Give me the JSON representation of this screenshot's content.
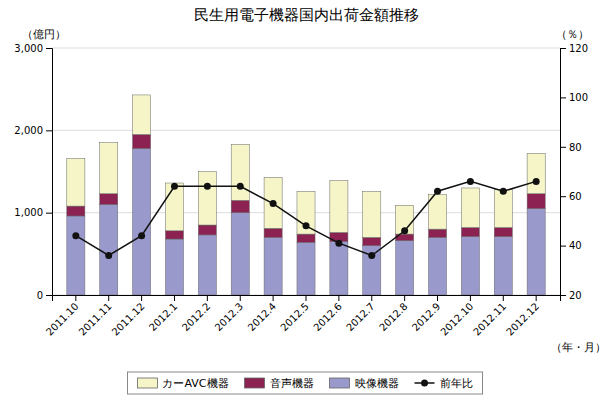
{
  "chart_data": {
    "type": "bar",
    "title": "民生用電子機器国内出荷金額推移",
    "xlabel": "（年・月）",
    "ylabel": "（億円）",
    "y2label": "（％）",
    "categories": [
      "2011.10",
      "2011.11",
      "2011.12",
      "2012.1",
      "2012.2",
      "2012.3",
      "2012.4",
      "2012.5",
      "2012.6",
      "2012.7",
      "2012.8",
      "2012.9",
      "2012.10",
      "2012.11",
      "2012.12"
    ],
    "series": [
      {
        "name": "映像機器",
        "type": "bar",
        "color": "#9999cc",
        "values": [
          960,
          1100,
          1780,
          680,
          730,
          1000,
          700,
          640,
          650,
          600,
          660,
          700,
          710,
          710,
          1050
        ]
      },
      {
        "name": "音声機器",
        "type": "bar",
        "color": "#8b2252",
        "values": [
          120,
          130,
          170,
          100,
          120,
          150,
          110,
          100,
          110,
          100,
          80,
          100,
          110,
          110,
          180
        ]
      },
      {
        "name": "カーAVC機器",
        "type": "bar",
        "color": "#f5f5c8",
        "values": [
          580,
          620,
          480,
          580,
          650,
          680,
          620,
          520,
          630,
          560,
          350,
          420,
          480,
          460,
          490
        ]
      },
      {
        "name": "前年比",
        "type": "line",
        "axis": "y2",
        "color": "#111111",
        "marker": "circle",
        "values": [
          44,
          36,
          44,
          64,
          64,
          64,
          57,
          48,
          41,
          36,
          46,
          62,
          66,
          62,
          66
        ]
      }
    ],
    "stacked": true,
    "ylim": [
      0,
      3000
    ],
    "yticks": [
      0,
      {
        "value": 1000,
        "label": "1,000"
      },
      {
        "value": 2000,
        "label": "2,000"
      },
      {
        "value": 3000,
        "label": "3,000"
      }
    ],
    "y2lim": [
      20,
      120
    ],
    "y2ticks": [
      20,
      40,
      60,
      80,
      100,
      120
    ],
    "grid": true,
    "legend": "bottom"
  }
}
